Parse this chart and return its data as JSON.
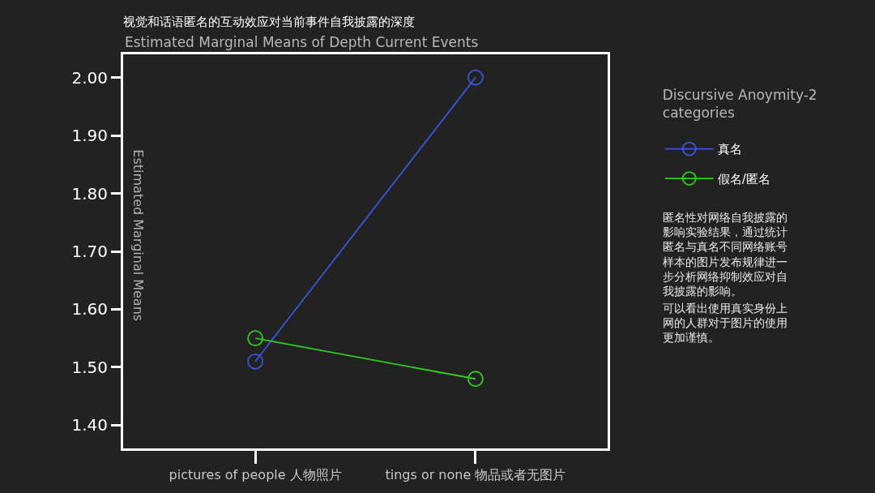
{
  "chart_data": {
    "type": "line",
    "title": "视觉和话语匿名的互动效应对当前事件自我披露的深度",
    "subtitle": "Estimated Marginal Means of Depth Current Events",
    "ylabel": "Estimated Marginal Means",
    "legend_title": "Discursive Anoymity-2 categories",
    "categories": [
      "pictures of people 人物照片",
      "tings or none 物品或者无图片"
    ],
    "series": [
      {
        "name": "真名",
        "color": "#3a56dc",
        "values": [
          1.51,
          2.0
        ]
      },
      {
        "name": "假名/匿名",
        "color": "#33cc22",
        "values": [
          1.55,
          1.48
        ]
      }
    ],
    "ylim": [
      1.36,
      2.04
    ],
    "yticks": [
      {
        "value": 1.4,
        "label": "1.40"
      },
      {
        "value": 1.5,
        "label": "1.50"
      },
      {
        "value": 1.6,
        "label": "1.60"
      },
      {
        "value": 1.7,
        "label": "1.70"
      },
      {
        "value": 1.8,
        "label": "1.80"
      },
      {
        "value": 1.9,
        "label": "1.90"
      },
      {
        "value": 2.0,
        "label": "2.00"
      }
    ],
    "grid": false,
    "legend": "right",
    "marker": "circle",
    "line_style": "solid",
    "annotations": [
      "匿名性对网络自我披露的影响实验结果，通过统计匿名与真名不同网络账号样本的图片发布规律进一步分析网络抑制效应对自我披露的影响。",
      "可以看出使用真实身份上网的人群对于图片的使用更加谨慎。"
    ]
  }
}
